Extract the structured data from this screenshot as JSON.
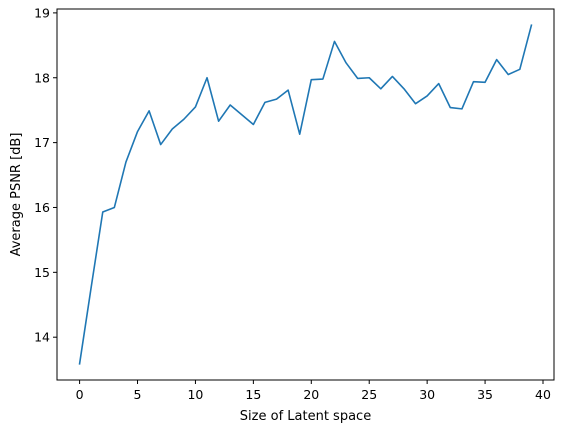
{
  "chart_data": {
    "type": "line",
    "title": "",
    "xlabel": "Size of Latent space",
    "ylabel": "Average PSNR [dB]",
    "xlim": [
      -1.95,
      40.95
    ],
    "ylim": [
      13.34,
      19.06
    ],
    "grid": false,
    "legend": "none",
    "line_color": "#1f77b4",
    "x_ticks": [
      0,
      5,
      10,
      15,
      20,
      25,
      30,
      35,
      40
    ],
    "x_tick_labels": [
      "0",
      "5",
      "10",
      "15",
      "20",
      "25",
      "30",
      "35",
      "40"
    ],
    "y_ticks": [
      14,
      15,
      16,
      17,
      18,
      19
    ],
    "y_tick_labels": [
      "14",
      "15",
      "16",
      "17",
      "18",
      "19"
    ],
    "series": [
      {
        "x": [
          0,
          1,
          2,
          3,
          4,
          5,
          6,
          7,
          8,
          9,
          10,
          11,
          12,
          13,
          14,
          15,
          16,
          17,
          18,
          19,
          20,
          21,
          22,
          23,
          24,
          25,
          26,
          27,
          28,
          29,
          30,
          31,
          32,
          33,
          34,
          35,
          36,
          37,
          38,
          39
        ],
        "y": [
          13.59,
          14.77,
          15.93,
          16.0,
          16.7,
          17.17,
          17.49,
          16.97,
          17.21,
          17.36,
          17.55,
          18.0,
          17.33,
          17.58,
          17.43,
          17.28,
          17.62,
          17.67,
          17.81,
          17.13,
          17.97,
          17.98,
          18.56,
          18.23,
          17.99,
          18.0,
          17.83,
          18.02,
          17.83,
          17.6,
          17.72,
          17.91,
          17.54,
          17.52,
          17.94,
          17.93,
          18.28,
          18.05,
          18.13,
          18.81
        ]
      }
    ]
  }
}
